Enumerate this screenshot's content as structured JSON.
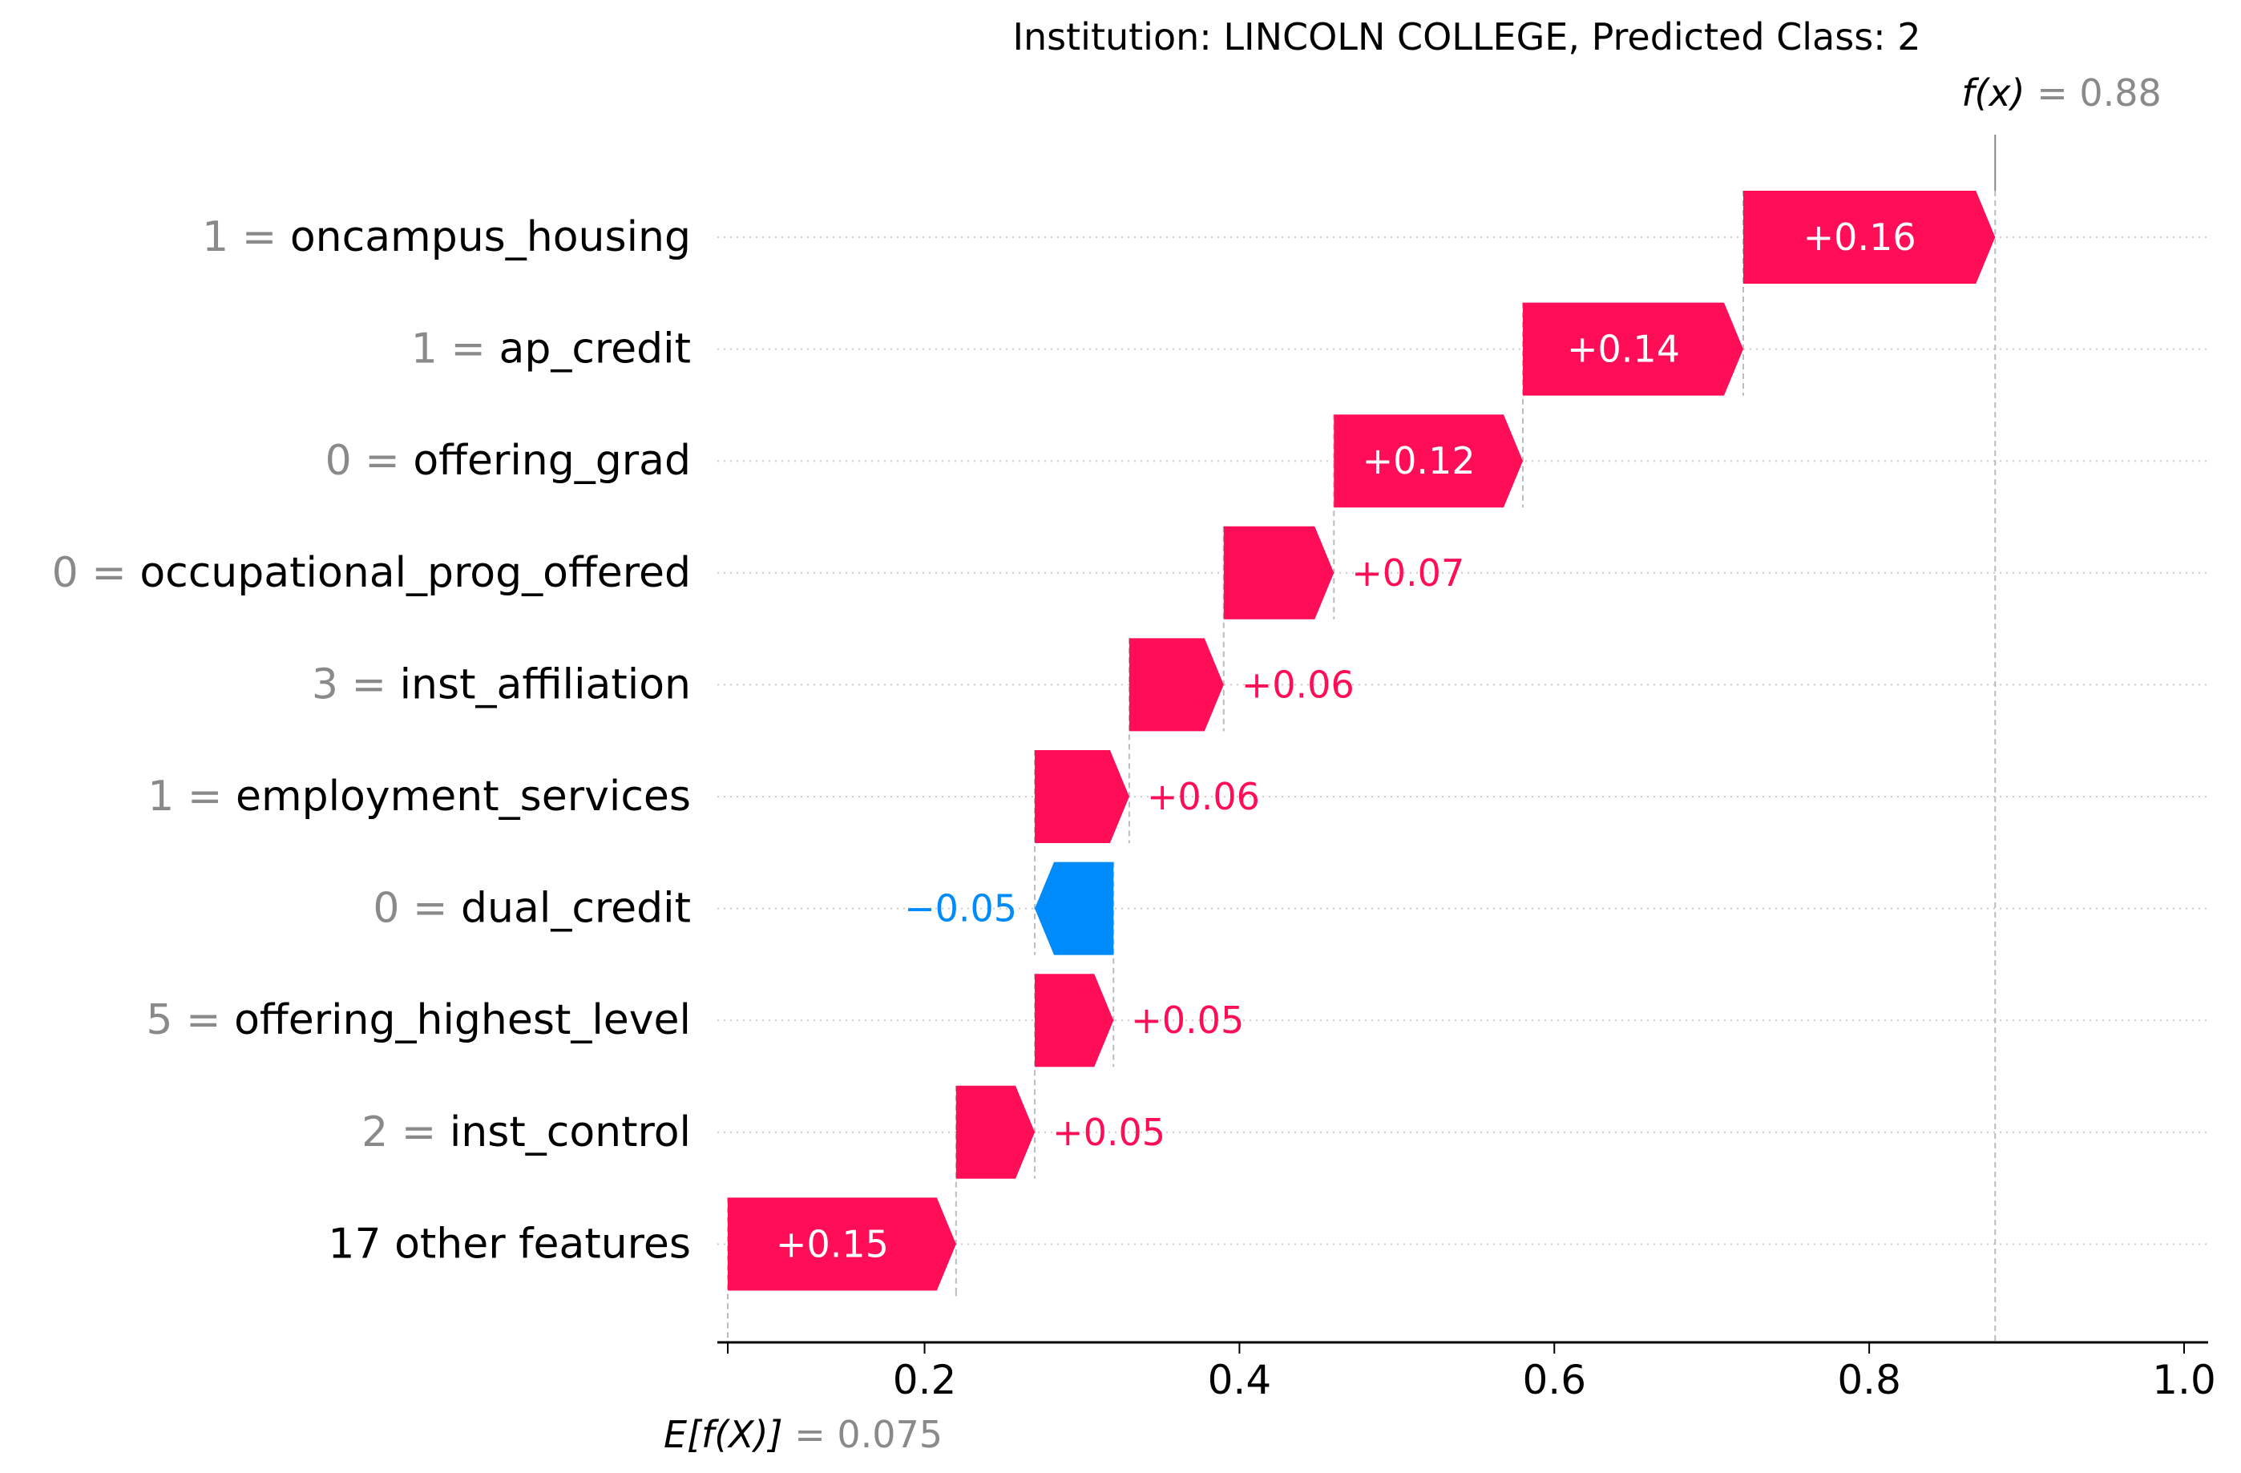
{
  "chart_data": {
    "type": "waterfall",
    "title": "Institution: LINCOLN COLLEGE, Predicted Class: 2",
    "fx": {
      "label": "f(x)",
      "eq": "=",
      "value": "0.88",
      "x": 0.88
    },
    "base": {
      "label": "E[f(X)]",
      "eq": "=",
      "value": "0.075",
      "x": 0.075
    },
    "xlim": [
      0.06,
      1.0
    ],
    "ticks": [
      {
        "v": 0.2,
        "label": "0.2"
      },
      {
        "v": 0.4,
        "label": "0.4"
      },
      {
        "v": 0.6,
        "label": "0.6"
      },
      {
        "v": 0.8,
        "label": "0.8"
      },
      {
        "v": 1.0,
        "label": "1.0"
      }
    ],
    "colors": {
      "positive": "#ff0d57",
      "negative": "#008bfb",
      "value_gray": "#8a8a8a",
      "text": "#000000"
    },
    "rows": [
      {
        "value": "1",
        "eq": "=",
        "feature": "oncampus_housing",
        "start": 0.72,
        "end": 0.88,
        "label": "+0.16",
        "label_inside": true
      },
      {
        "value": "1",
        "eq": "=",
        "feature": "ap_credit",
        "start": 0.58,
        "end": 0.72,
        "label": "+0.14",
        "label_inside": true
      },
      {
        "value": "0",
        "eq": "=",
        "feature": "offering_grad",
        "start": 0.46,
        "end": 0.58,
        "label": "+0.12",
        "label_inside": true
      },
      {
        "value": "0",
        "eq": "=",
        "feature": "occupational_prog_offered",
        "start": 0.39,
        "end": 0.46,
        "label": "+0.07",
        "label_inside": false
      },
      {
        "value": "3",
        "eq": "=",
        "feature": "inst_affiliation",
        "start": 0.33,
        "end": 0.39,
        "label": "+0.06",
        "label_inside": false
      },
      {
        "value": "1",
        "eq": "=",
        "feature": "employment_services",
        "start": 0.27,
        "end": 0.33,
        "label": "+0.06",
        "label_inside": false
      },
      {
        "value": "0",
        "eq": "=",
        "feature": "dual_credit",
        "start": 0.32,
        "end": 0.27,
        "label": "−0.05",
        "label_inside": false
      },
      {
        "value": "5",
        "eq": "=",
        "feature": "offering_highest_level",
        "start": 0.27,
        "end": 0.32,
        "label": "+0.05",
        "label_inside": false
      },
      {
        "value": "2",
        "eq": "=",
        "feature": "inst_control",
        "start": 0.22,
        "end": 0.27,
        "label": "+0.05",
        "label_inside": false
      },
      {
        "value": "",
        "eq": "",
        "feature": "17 other features",
        "start": 0.075,
        "end": 0.22,
        "label": "+0.15",
        "label_inside": true
      }
    ]
  }
}
